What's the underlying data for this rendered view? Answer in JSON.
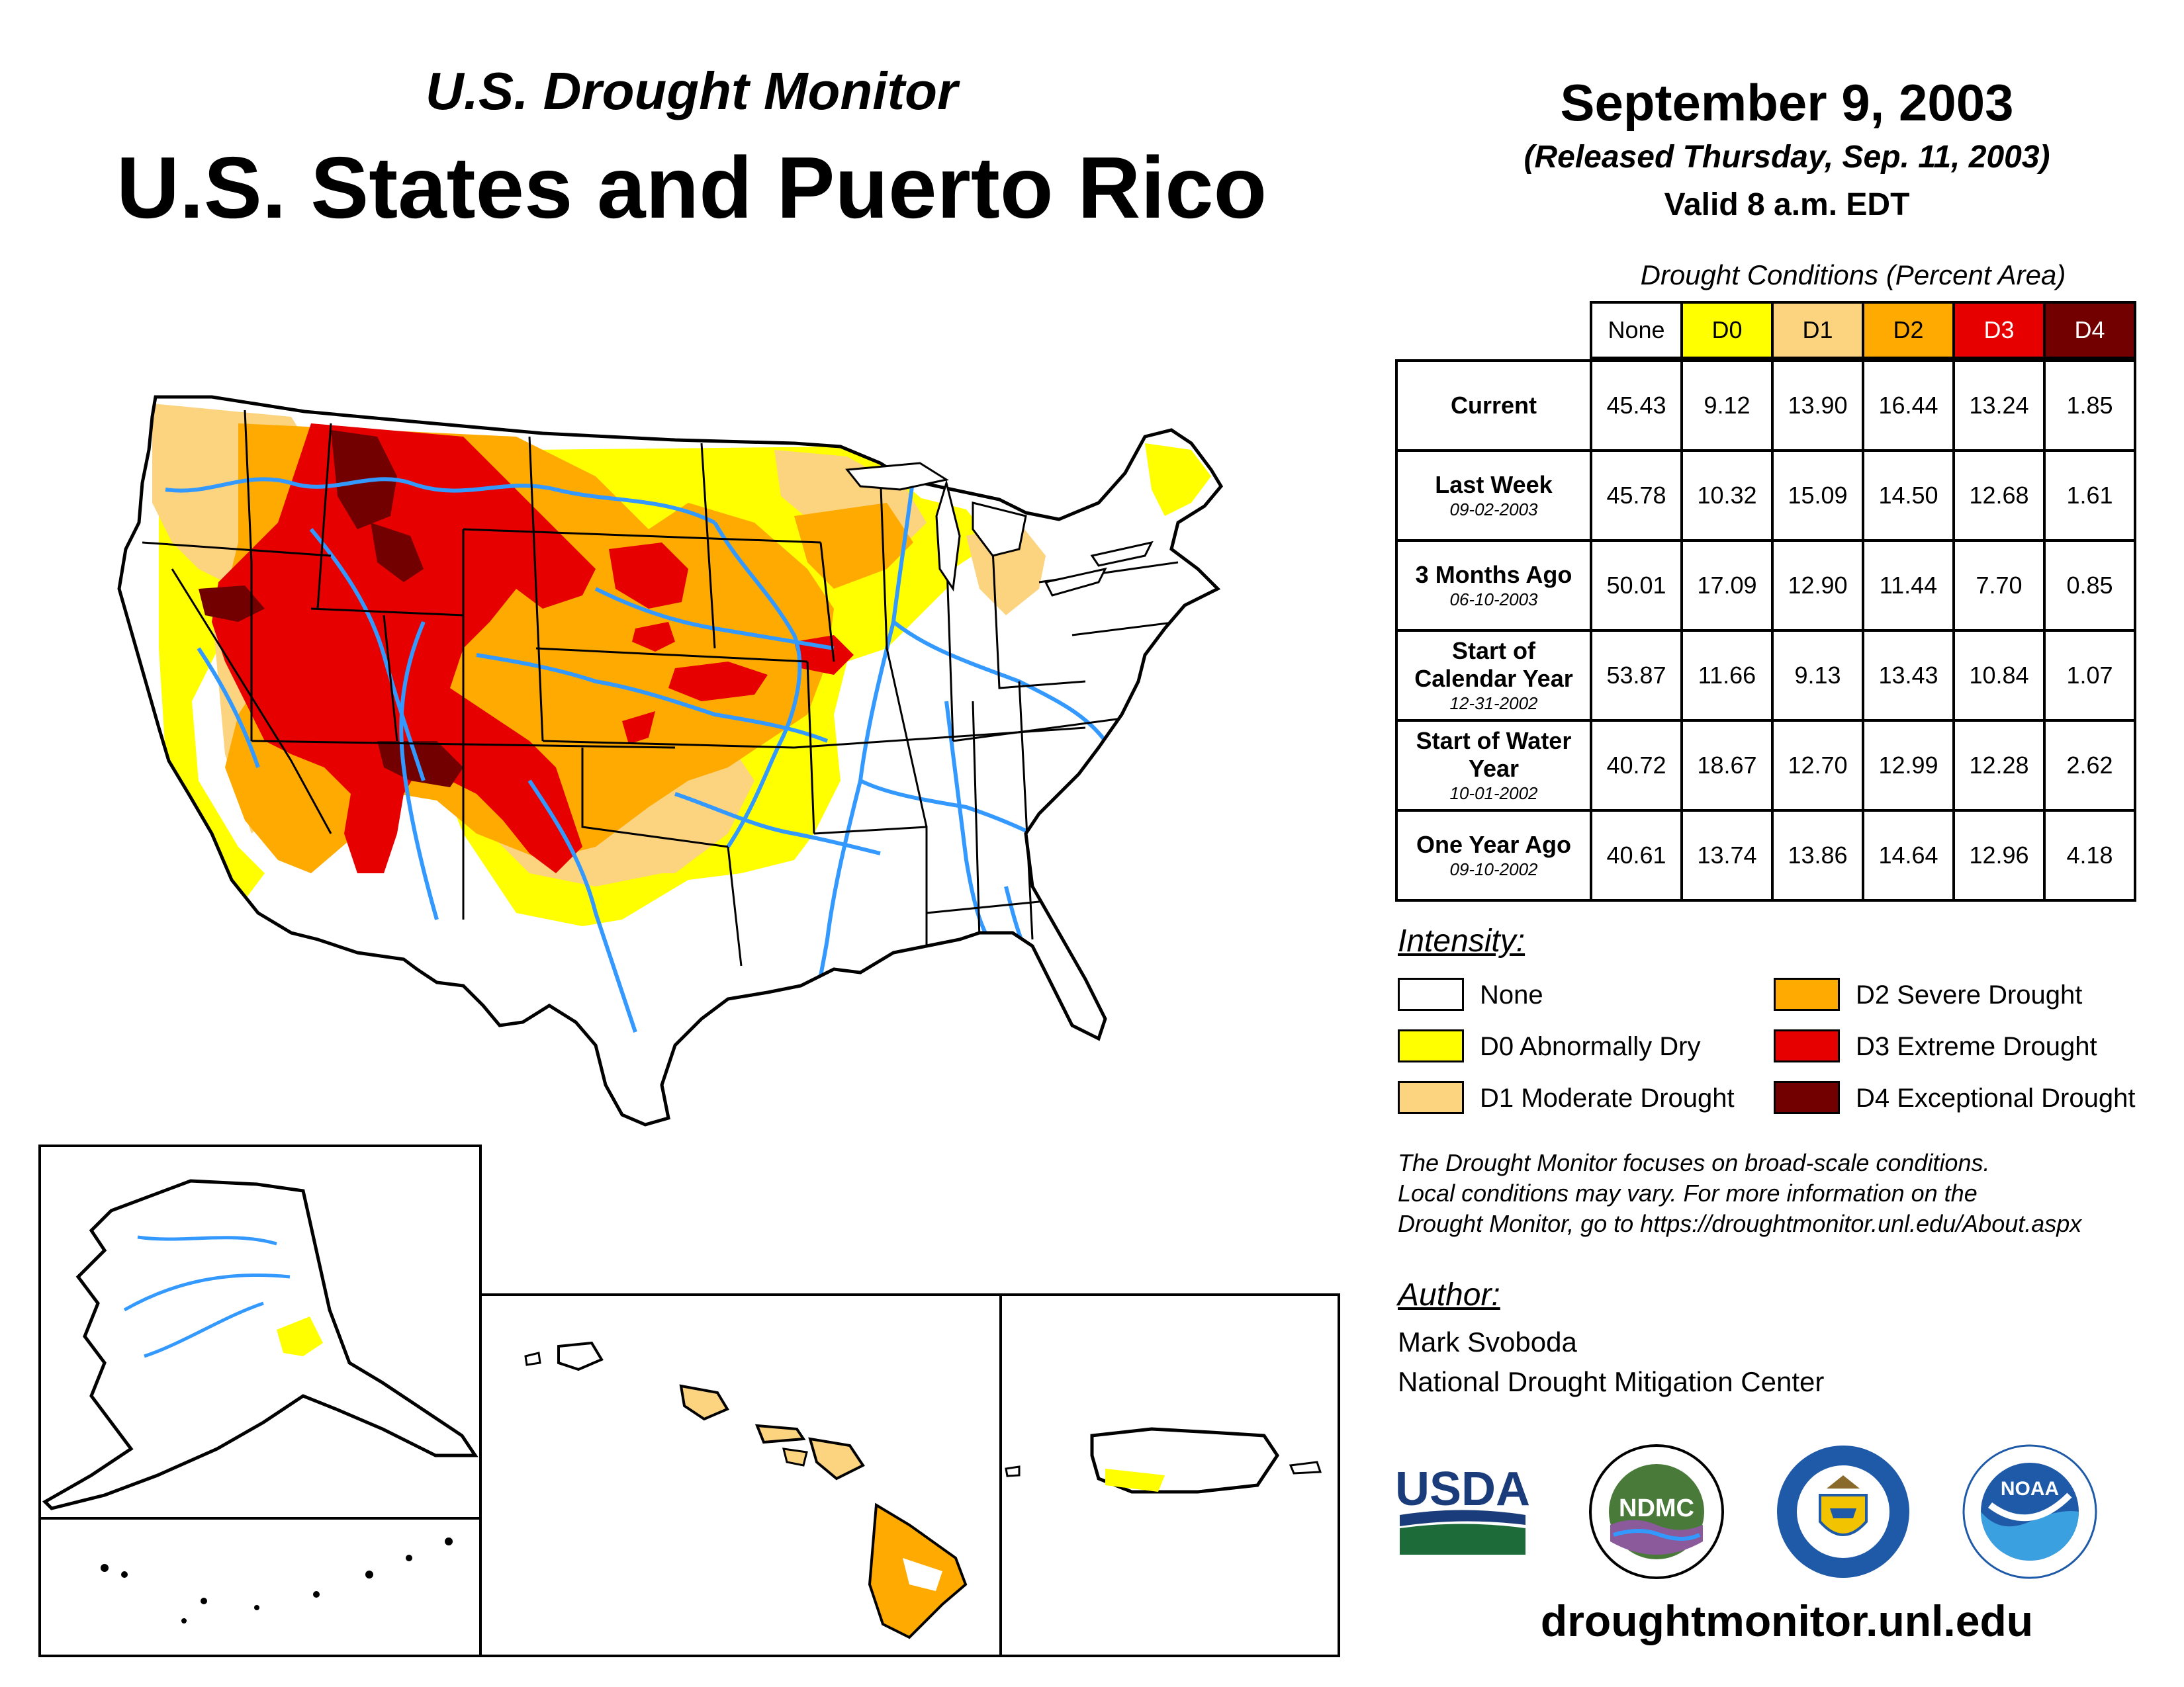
{
  "header": {
    "subtitle": "U.S. Drought Monitor",
    "title": "U.S. States and Puerto Rico",
    "date": "September 9, 2003",
    "released": "(Released Thursday, Sep. 11, 2003)",
    "valid": "Valid 8 a.m. EDT"
  },
  "table": {
    "caption": "Drought Conditions (Percent Area)",
    "columns": [
      "None",
      "D0",
      "D1",
      "D2",
      "D3",
      "D4"
    ],
    "rows": [
      {
        "label": "Current",
        "date": "",
        "values": [
          "45.43",
          "9.12",
          "13.90",
          "16.44",
          "13.24",
          "1.85"
        ]
      },
      {
        "label": "Last Week",
        "date": "09-02-2003",
        "values": [
          "45.78",
          "10.32",
          "15.09",
          "14.50",
          "12.68",
          "1.61"
        ]
      },
      {
        "label": "3 Months Ago",
        "date": "06-10-2003",
        "values": [
          "50.01",
          "17.09",
          "12.90",
          "11.44",
          "7.70",
          "0.85"
        ]
      },
      {
        "label": "Start of Calendar Year",
        "date": "12-31-2002",
        "values": [
          "53.87",
          "11.66",
          "9.13",
          "13.43",
          "10.84",
          "1.07"
        ]
      },
      {
        "label": "Start of Water Year",
        "date": "10-01-2002",
        "values": [
          "40.72",
          "18.67",
          "12.70",
          "12.99",
          "12.28",
          "2.62"
        ]
      },
      {
        "label": "One Year Ago",
        "date": "09-10-2002",
        "values": [
          "40.61",
          "13.74",
          "13.86",
          "14.64",
          "12.96",
          "4.18"
        ]
      }
    ]
  },
  "legend": {
    "title": "Intensity:",
    "items": [
      {
        "label": "None",
        "color": "#ffffff"
      },
      {
        "label": "D0 Abnormally Dry",
        "color": "#ffff00"
      },
      {
        "label": "D1 Moderate Drought",
        "color": "#fcd37f"
      },
      {
        "label": "D2 Severe Drought",
        "color": "#ffaa00"
      },
      {
        "label": "D3 Extreme Drought",
        "color": "#e60000"
      },
      {
        "label": "D4 Exceptional Drought",
        "color": "#730000"
      }
    ]
  },
  "note": {
    "line1": "The Drought Monitor focuses on broad-scale conditions.",
    "line2": "Local conditions may vary. For more information on the",
    "line3": "Drought Monitor, go to https://droughtmonitor.unl.edu/About.aspx"
  },
  "author": {
    "title": "Author:",
    "name": "Mark Svoboda",
    "org": "National Drought Mitigation Center"
  },
  "logos": {
    "usda": "USDA",
    "ndmc": "NDMC",
    "noaa": "NOAA"
  },
  "website": "droughtmonitor.unl.edu",
  "colors": {
    "none": "#ffffff",
    "d0": "#ffff00",
    "d1": "#fcd37f",
    "d2": "#ffaa00",
    "d3": "#e60000",
    "d4": "#730000",
    "river": "#3399ff"
  }
}
